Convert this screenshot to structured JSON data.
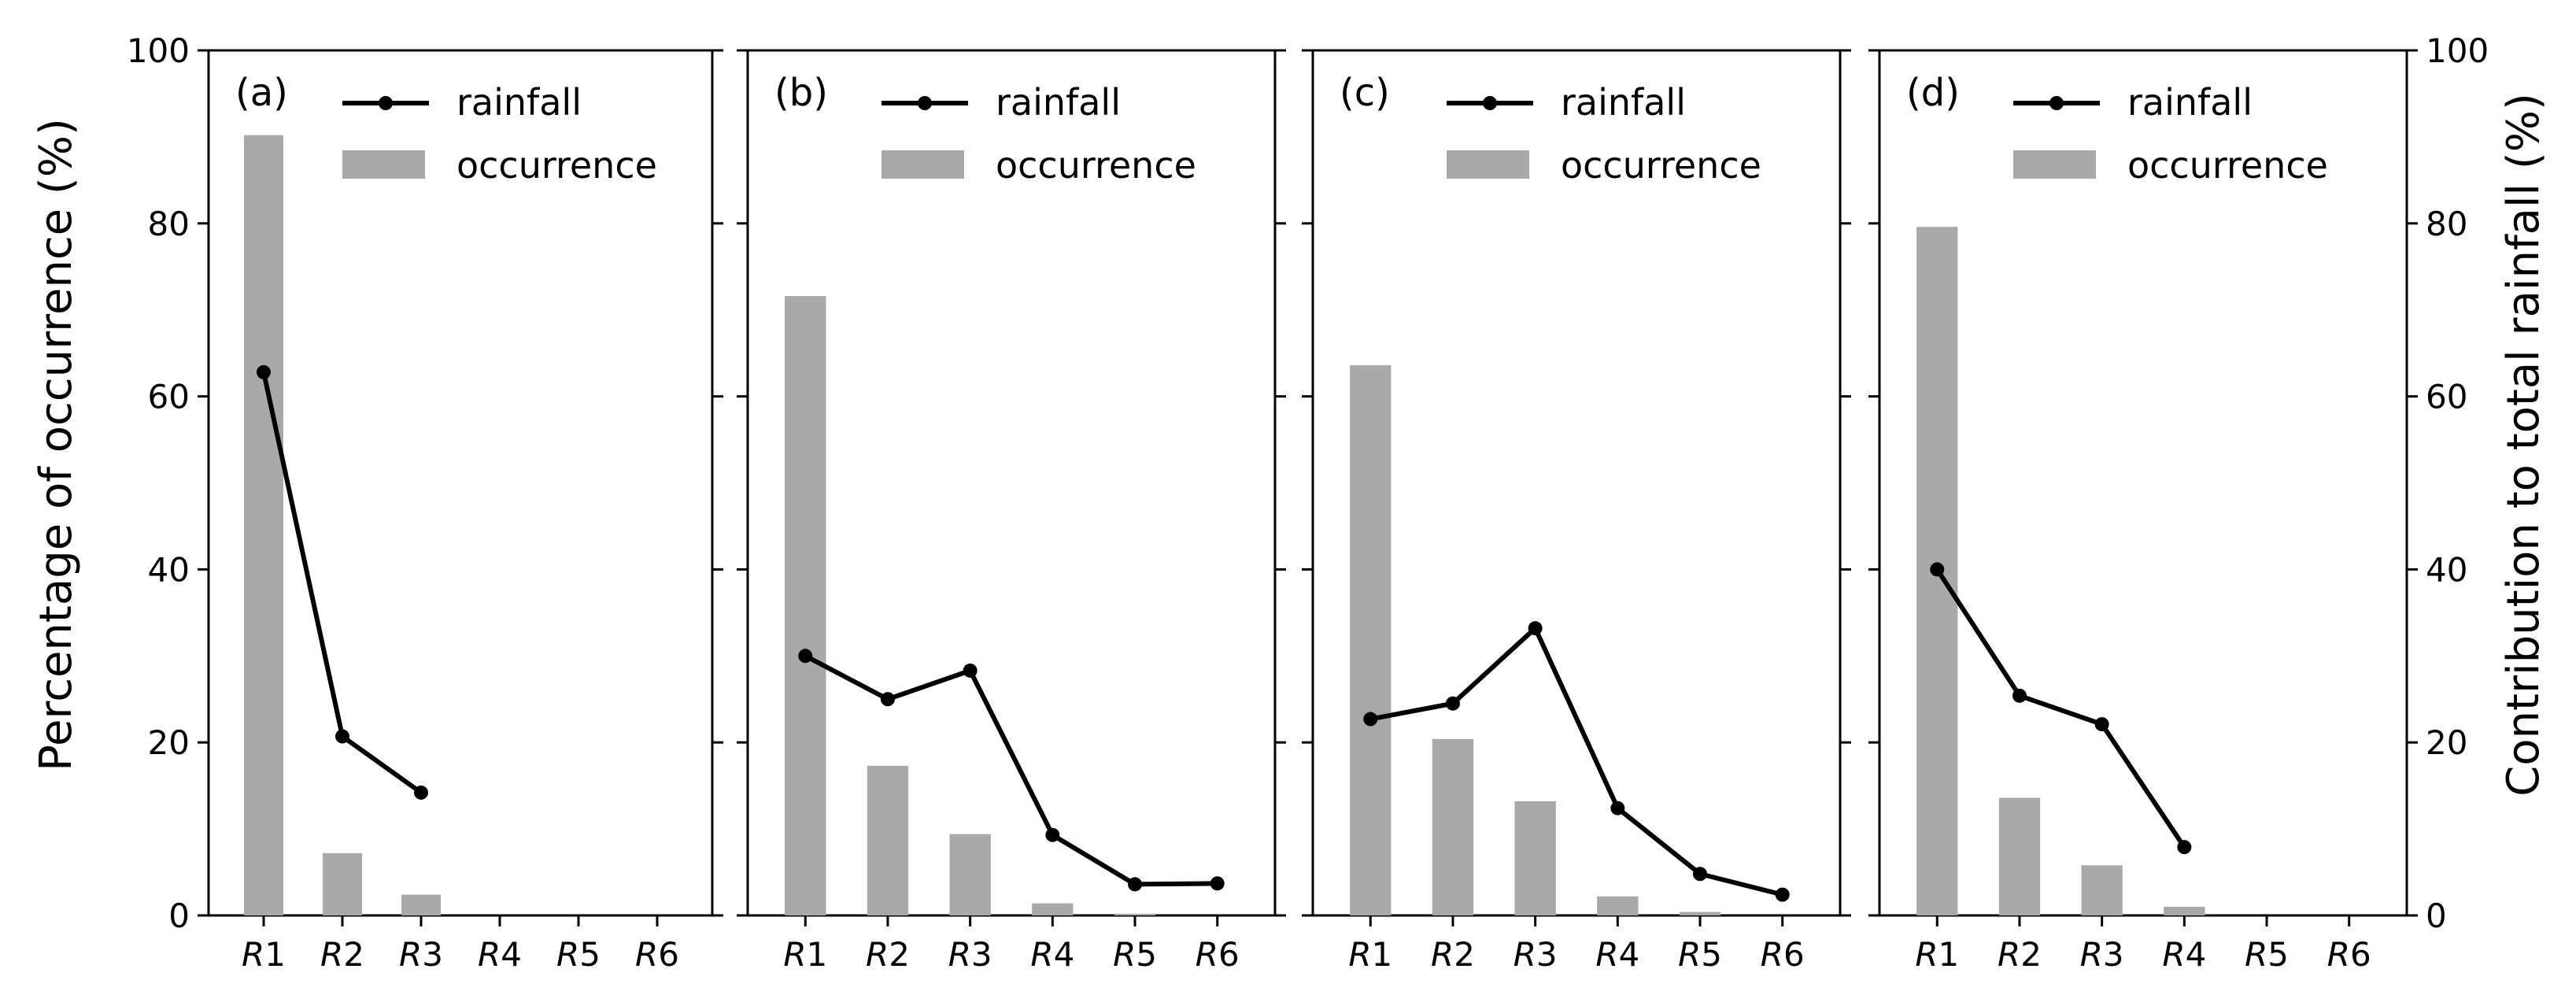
{
  "figure": {
    "left_axis_title": "Percentage of occurrence (%)",
    "right_axis_title": "Contribution to total rainfall (%)"
  },
  "colors": {
    "bar": "#a9a9a9",
    "line": "#000000"
  },
  "legend": {
    "rainfall": "rainfall",
    "occurrence": "occurrence"
  },
  "chart_data": [
    {
      "type": "bar",
      "panel_label": "(a)",
      "categories": [
        "R1",
        "R2",
        "R3",
        "R4",
        "R5",
        "R6"
      ],
      "ylim": [
        0,
        100
      ],
      "yticks": [
        "0",
        "20",
        "40",
        "60",
        "80",
        "100"
      ],
      "series": [
        {
          "name": "occurrence",
          "type": "bar",
          "values": [
            90.2,
            7.2,
            2.4,
            null,
            null,
            null
          ]
        },
        {
          "name": "rainfall",
          "type": "line",
          "values": [
            62.8,
            20.7,
            14.2,
            null,
            null,
            null
          ]
        }
      ]
    },
    {
      "type": "bar",
      "panel_label": "(b)",
      "categories": [
        "R1",
        "R2",
        "R3",
        "R4",
        "R5",
        "R6"
      ],
      "ylim": [
        0,
        100
      ],
      "series": [
        {
          "name": "occurrence",
          "type": "bar",
          "values": [
            71.6,
            17.3,
            9.4,
            1.4,
            0.2,
            null
          ]
        },
        {
          "name": "rainfall",
          "type": "line",
          "values": [
            30.0,
            25.0,
            28.3,
            9.3,
            3.6,
            3.7
          ]
        }
      ]
    },
    {
      "type": "bar",
      "panel_label": "(c)",
      "categories": [
        "R1",
        "R2",
        "R3",
        "R4",
        "R5",
        "R6"
      ],
      "ylim": [
        0,
        100
      ],
      "series": [
        {
          "name": "occurrence",
          "type": "bar",
          "values": [
            63.6,
            20.4,
            13.2,
            2.2,
            0.4,
            null
          ]
        },
        {
          "name": "rainfall",
          "type": "line",
          "values": [
            22.7,
            24.5,
            33.2,
            12.4,
            4.8,
            2.4
          ]
        }
      ]
    },
    {
      "type": "bar",
      "panel_label": "(d)",
      "categories": [
        "R1",
        "R2",
        "R3",
        "R4",
        "R5",
        "R6"
      ],
      "ylim": [
        0,
        100
      ],
      "yticks_right": [
        "0",
        "20",
        "40",
        "60",
        "80",
        "100"
      ],
      "series": [
        {
          "name": "occurrence",
          "type": "bar",
          "values": [
            79.6,
            13.6,
            5.8,
            1.0,
            null,
            null
          ]
        },
        {
          "name": "rainfall",
          "type": "line",
          "values": [
            40.0,
            25.4,
            22.1,
            7.9,
            null,
            null
          ]
        }
      ]
    }
  ]
}
